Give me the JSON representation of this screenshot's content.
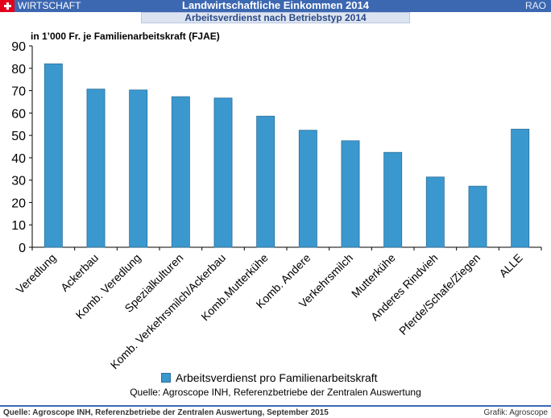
{
  "header": {
    "section": "WIRTSCHAFT",
    "title": "Landwirtschaftliche Einkommen 2014",
    "subtitle": "Arbeitsverdienst nach Betriebstyp 2014",
    "rao": "RAO"
  },
  "units": "in 1’000 Fr. je Familienarbeitskraft  (FJAE)",
  "legend_label": "Arbeitsverdienst pro Familienarbeitskraft",
  "source_note": "Quelle: Agroscope INH, Referenzbetriebe der Zentralen Auswertung",
  "footer": {
    "left": "Quelle: Agroscope INH, Referenzbetriebe der Zentralen Auswertung, September 2015",
    "right": "Grafik: Agroscope"
  },
  "colors": {
    "bar": "#3b98cf",
    "bar_border": "#2a6f9a",
    "header": "#3c67b1"
  },
  "chart_data": {
    "type": "bar",
    "categories": [
      "Veredlung",
      "Ackerbau",
      "Komb. Veredlung",
      "Spezialkulturen",
      "Komb. Verkehrsmilch/Ackerbau",
      "Komb.Mutterkühe",
      "Komb. Andere",
      "Verkehrsmilch",
      "Mutterkühe",
      "Anderes Rindvieh",
      "Pferde/Schafe/Ziegen",
      "ALLE"
    ],
    "series": [
      {
        "name": "Arbeitsverdienst pro Familienarbeitskraft",
        "values": [
          82,
          70.7,
          70.3,
          67.3,
          66.7,
          58.6,
          52.3,
          47.6,
          42.4,
          31.4,
          27.3,
          52.8
        ]
      }
    ],
    "yticks": [
      0,
      10,
      20,
      30,
      40,
      50,
      60,
      70,
      80,
      90
    ],
    "ylim": [
      0,
      90
    ],
    "grid": false,
    "legend_position": "bottom"
  }
}
